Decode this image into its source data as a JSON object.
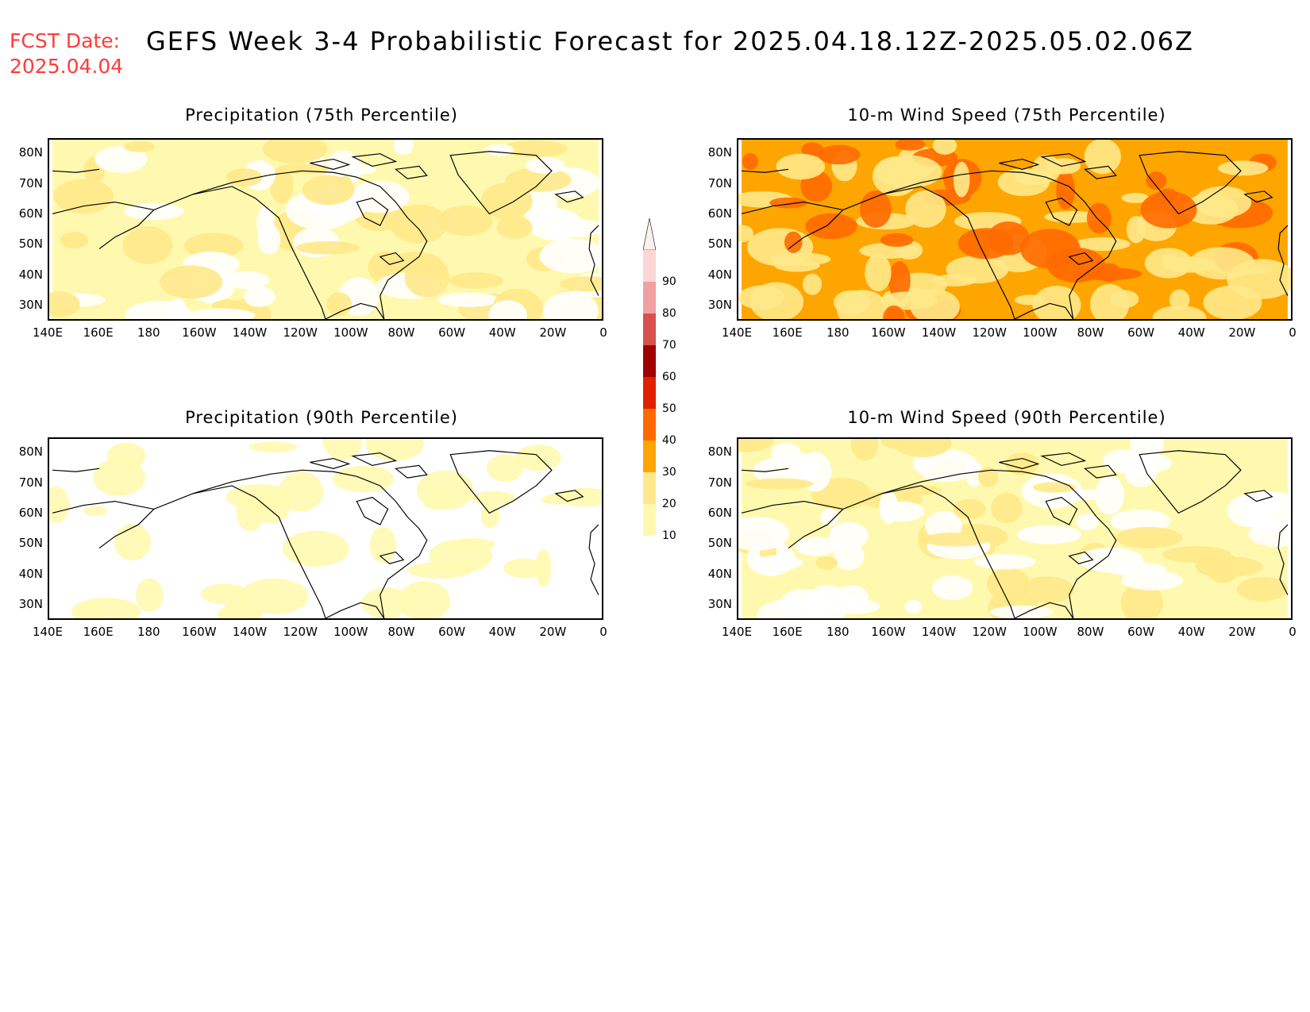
{
  "header": {
    "fcst_label": "FCST Date:",
    "fcst_date": "2025.04.04",
    "title": "GEFS Week 3-4 Probabilistic Forecast for 2025.04.18.12Z-2025.05.02.06Z"
  },
  "axes": {
    "lat_labels": [
      "80N",
      "70N",
      "60N",
      "50N",
      "40N",
      "30N"
    ],
    "lon_labels": [
      "140E",
      "160E",
      "180",
      "160W",
      "140W",
      "120W",
      "100W",
      "80W",
      "60W",
      "40W",
      "20W",
      "0"
    ]
  },
  "panels": [
    {
      "title": "Precipitation (75th Percentile)",
      "dominant_level": 1
    },
    {
      "title": "10-m Wind Speed (75th Percentile)",
      "dominant_level": 3
    },
    {
      "title": "Precipitation (90th Percentile)",
      "dominant_level": 0
    },
    {
      "title": "10-m Wind Speed (90th Percentile)",
      "dominant_level": 1
    }
  ],
  "colorbar": {
    "levels": [
      "10",
      "20",
      "30",
      "40",
      "50",
      "60",
      "70",
      "80",
      "90"
    ],
    "colors": [
      "#fff9b0",
      "#ffe98a",
      "#ffa500",
      "#ff6a00",
      "#e02000",
      "#a00000",
      "#d85050",
      "#f0a0a0",
      "#fcd6d6"
    ]
  }
}
